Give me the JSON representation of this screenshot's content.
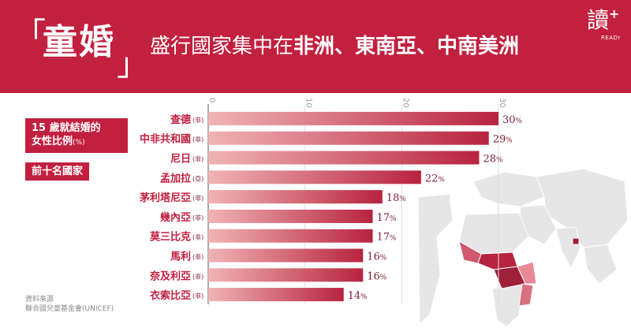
{
  "header": {
    "quote_open": "「",
    "quote_close": "」",
    "main_title": "童婚",
    "subtitle_plain": "盛行國家集中在",
    "subtitle_bold": "非洲、東南亞、中南美洲",
    "logo_char": "讀",
    "logo_plus": "+",
    "logo_sub": "READr"
  },
  "legend": {
    "line1": "15 歲就結婚的",
    "line2": "女性比例",
    "unit": "(%)",
    "top10": "前十名國家"
  },
  "source": {
    "label": "資料來源",
    "org": "聯合國兒童基金會(UNICEF)"
  },
  "colors": {
    "brand": "#c2203f",
    "bar_dark": "#b8233f",
    "bar_light": "#f0b4b4",
    "label": "#c2203f",
    "region": "#7b1e32"
  },
  "chart_data": {
    "type": "bar",
    "orientation": "horizontal",
    "title": "15 歲就結婚的女性比例 (%) 前十名國家",
    "xlim": [
      0,
      30
    ],
    "ticks": [
      "0",
      "10",
      "20",
      "30"
    ],
    "categories": [
      "查德",
      "中非共和國",
      "尼日",
      "孟加拉",
      "茅利塔尼亞",
      "幾內亞",
      "莫三比克",
      "馬利",
      "奈及利亞",
      "衣索比亞"
    ],
    "regions": [
      "(非)",
      "(非)",
      "(非)",
      "(亞)",
      "(非)",
      "(非)",
      "(非)",
      "(非)",
      "(非)",
      "(非)"
    ],
    "values": [
      30,
      29,
      28,
      22,
      18,
      17,
      17,
      16,
      16,
      14
    ],
    "value_unit": "%"
  }
}
